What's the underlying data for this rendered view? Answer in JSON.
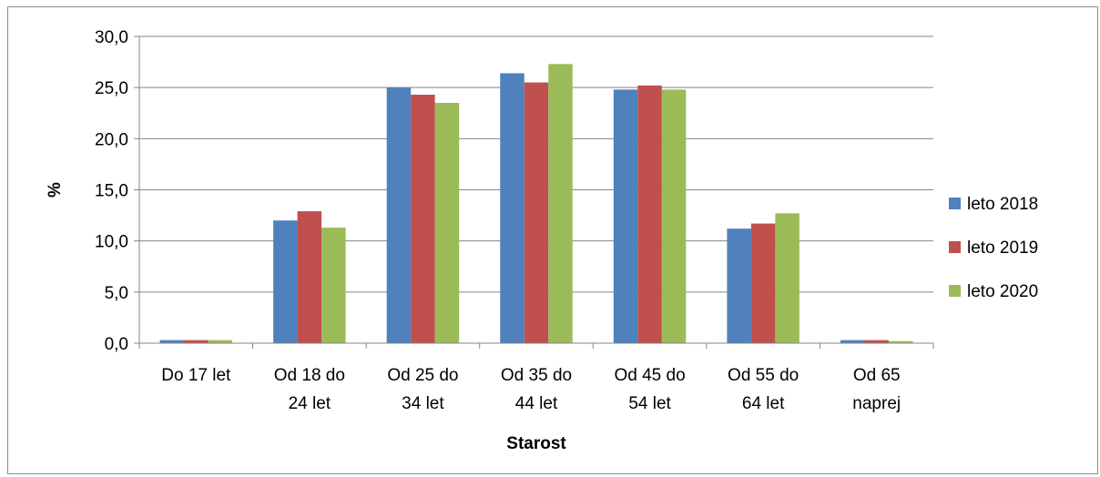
{
  "chart_data": {
    "type": "bar",
    "categories": [
      [
        "Do 17 let"
      ],
      [
        "Od 18 do",
        "24 let"
      ],
      [
        "Od 25 do",
        "34 let"
      ],
      [
        "Od 35 do",
        "44 let"
      ],
      [
        "Od 45 do",
        "54 let"
      ],
      [
        "Od 55 do",
        "64 let"
      ],
      [
        "Od 65",
        "naprej"
      ]
    ],
    "series": [
      {
        "name": "leto 2018",
        "color": "#4f81bd",
        "values": [
          0.3,
          12.0,
          25.0,
          26.4,
          24.8,
          11.2,
          0.3
        ]
      },
      {
        "name": "leto 2019",
        "color": "#c0504d",
        "values": [
          0.3,
          12.9,
          24.3,
          25.5,
          25.2,
          11.7,
          0.3
        ]
      },
      {
        "name": "leto 2020",
        "color": "#9bbb59",
        "values": [
          0.3,
          11.3,
          23.5,
          27.3,
          24.8,
          12.7,
          0.2
        ]
      }
    ],
    "title": "",
    "xlabel": "Starost",
    "ylabel": "%",
    "ylim": [
      0,
      30
    ],
    "yticks": [
      "0,0",
      "5,0",
      "10,0",
      "15,0",
      "20,0",
      "25,0",
      "30,0"
    ],
    "grid": true,
    "legend": "right"
  }
}
